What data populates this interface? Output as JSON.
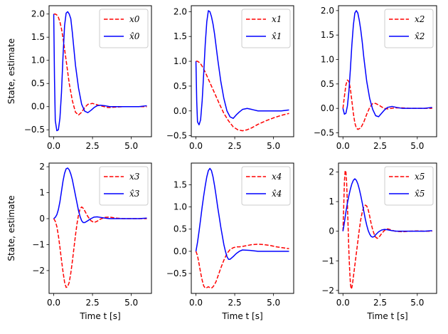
{
  "chart_data": [
    {
      "type": "line",
      "xlabel": "",
      "ylabel": "State, estimate",
      "xlim": [
        -0.3,
        6.3
      ],
      "ylim": [
        -0.65,
        2.18
      ],
      "xticks": [
        0.0,
        2.5,
        5.0
      ],
      "yticks": [
        -0.5,
        0.0,
        0.5,
        1.0,
        1.5,
        2.0
      ],
      "xtick_labels": [
        "0.0",
        "2.5",
        "5.0"
      ],
      "ytick_labels": [
        "−0.5",
        "0.0",
        "0.5",
        "1.0",
        "1.5",
        "2.0"
      ],
      "legend_position": "top-right",
      "series": [
        {
          "name": "x0",
          "name_sub": "0",
          "hat": false,
          "color": "#ff0000",
          "dash": true,
          "x": [
            0,
            0.1,
            0.2,
            0.3,
            0.4,
            0.5,
            0.6,
            0.8,
            1.0,
            1.2,
            1.4,
            1.6,
            1.8,
            2.0,
            2.2,
            2.5,
            2.8,
            3.0,
            3.5,
            4.0,
            4.5,
            5.0,
            5.5,
            6.0
          ],
          "y": [
            2.0,
            2.0,
            1.98,
            1.93,
            1.83,
            1.68,
            1.48,
            1.0,
            0.5,
            0.13,
            -0.12,
            -0.18,
            -0.12,
            -0.02,
            0.05,
            0.07,
            0.04,
            0.02,
            -0.02,
            -0.01,
            0.0,
            0.0,
            0.0,
            0.0
          ]
        },
        {
          "name": "x̂0",
          "name_sub": "0",
          "hat": true,
          "color": "#0000ff",
          "dash": false,
          "x": [
            0,
            0.05,
            0.1,
            0.2,
            0.3,
            0.4,
            0.5,
            0.6,
            0.7,
            0.8,
            0.9,
            1.0,
            1.1,
            1.2,
            1.3,
            1.4,
            1.6,
            1.8,
            2.0,
            2.2,
            2.4,
            2.6,
            2.8,
            3.0,
            3.3,
            3.6,
            4.0,
            4.5,
            5.0,
            5.5,
            6.0
          ],
          "y": [
            2.0,
            0.6,
            -0.3,
            -0.52,
            -0.5,
            -0.25,
            0.3,
            1.1,
            1.75,
            2.02,
            2.05,
            2.0,
            1.9,
            1.6,
            1.25,
            0.9,
            0.4,
            0.05,
            -0.1,
            -0.13,
            -0.08,
            -0.02,
            0.02,
            0.03,
            0.02,
            0.0,
            0.0,
            0.0,
            0.0,
            0.0,
            0.02
          ]
        }
      ]
    },
    {
      "type": "line",
      "xlabel": "",
      "ylabel": "",
      "xlim": [
        -0.3,
        6.3
      ],
      "ylim": [
        -0.52,
        2.12
      ],
      "xticks": [
        0.0,
        2.5,
        5.0
      ],
      "yticks": [
        -0.5,
        0.0,
        0.5,
        1.0,
        1.5,
        2.0
      ],
      "xtick_labels": [
        "0.0",
        "2.5",
        "5.0"
      ],
      "ytick_labels": [
        "−0.5",
        "0.0",
        "0.5",
        "1.0",
        "1.5",
        "2.0"
      ],
      "legend_position": "top-right",
      "series": [
        {
          "name": "x1",
          "name_sub": "1",
          "hat": false,
          "color": "#ff0000",
          "dash": true,
          "x": [
            0,
            0.1,
            0.2,
            0.3,
            0.4,
            0.6,
            0.8,
            1.0,
            1.2,
            1.5,
            1.8,
            2.1,
            2.4,
            2.7,
            3.0,
            3.3,
            3.6,
            4.0,
            4.5,
            5.0,
            5.5,
            6.0
          ],
          "y": [
            1.0,
            1.0,
            0.98,
            0.95,
            0.9,
            0.78,
            0.64,
            0.5,
            0.36,
            0.15,
            -0.05,
            -0.2,
            -0.32,
            -0.38,
            -0.4,
            -0.38,
            -0.34,
            -0.27,
            -0.2,
            -0.14,
            -0.09,
            -0.05
          ]
        },
        {
          "name": "x̂1",
          "name_sub": "1",
          "hat": true,
          "color": "#0000ff",
          "dash": false,
          "x": [
            0,
            0.05,
            0.1,
            0.2,
            0.3,
            0.4,
            0.5,
            0.6,
            0.7,
            0.8,
            0.9,
            1.0,
            1.1,
            1.2,
            1.3,
            1.4,
            1.6,
            1.8,
            2.0,
            2.2,
            2.4,
            2.6,
            2.8,
            3.0,
            3.3,
            3.6,
            4.0,
            4.5,
            5.0,
            5.5,
            6.0
          ],
          "y": [
            1.0,
            0.2,
            -0.22,
            -0.28,
            -0.18,
            0.2,
            0.75,
            1.35,
            1.8,
            2.02,
            2.0,
            1.9,
            1.75,
            1.55,
            1.3,
            1.05,
            0.6,
            0.25,
            0.0,
            -0.12,
            -0.15,
            -0.08,
            -0.02,
            0.03,
            0.05,
            0.03,
            0.0,
            0.0,
            0.0,
            0.0,
            0.02
          ]
        }
      ]
    },
    {
      "type": "line",
      "xlabel": "",
      "ylabel": "",
      "xlim": [
        -0.3,
        6.3
      ],
      "ylim": [
        -0.58,
        2.1
      ],
      "xticks": [
        0.0,
        2.5,
        5.0
      ],
      "yticks": [
        -0.5,
        0.0,
        0.5,
        1.0,
        1.5,
        2.0
      ],
      "xtick_labels": [
        "0.0",
        "2.5",
        "5.0"
      ],
      "ytick_labels": [
        "−0.5",
        "0.0",
        "0.5",
        "1.0",
        "1.5",
        "2.0"
      ],
      "legend_position": "top-right",
      "series": [
        {
          "name": "x2",
          "name_sub": "2",
          "hat": false,
          "color": "#ff0000",
          "dash": true,
          "x": [
            0,
            0.1,
            0.2,
            0.3,
            0.4,
            0.5,
            0.6,
            0.7,
            0.8,
            0.9,
            1.0,
            1.2,
            1.4,
            1.6,
            1.8,
            2.0,
            2.2,
            2.4,
            2.6,
            2.8,
            3.0,
            3.5,
            4.0,
            4.5,
            5.0,
            5.5,
            6.0
          ],
          "y": [
            0.0,
            0.25,
            0.48,
            0.58,
            0.55,
            0.4,
            0.15,
            -0.1,
            -0.3,
            -0.4,
            -0.43,
            -0.4,
            -0.28,
            -0.12,
            0.02,
            0.1,
            0.1,
            0.07,
            0.03,
            0.0,
            -0.01,
            0.01,
            0.01,
            0.0,
            0.0,
            0.0,
            0.0
          ]
        },
        {
          "name": "x̂2",
          "name_sub": "2",
          "hat": true,
          "color": "#0000ff",
          "dash": false,
          "x": [
            0,
            0.1,
            0.2,
            0.3,
            0.4,
            0.5,
            0.6,
            0.7,
            0.8,
            0.9,
            1.0,
            1.1,
            1.2,
            1.3,
            1.4,
            1.5,
            1.6,
            1.8,
            2.0,
            2.2,
            2.4,
            2.6,
            2.8,
            3.0,
            3.3,
            3.6,
            4.0,
            4.5,
            5.0,
            5.5,
            6.0
          ],
          "y": [
            0.0,
            -0.12,
            -0.1,
            0.05,
            0.35,
            0.8,
            1.3,
            1.7,
            1.95,
            2.0,
            1.95,
            1.8,
            1.6,
            1.35,
            1.05,
            0.8,
            0.55,
            0.2,
            -0.02,
            -0.15,
            -0.17,
            -0.1,
            -0.03,
            0.02,
            0.04,
            0.02,
            0.0,
            0.0,
            0.0,
            0.0,
            0.02
          ]
        }
      ]
    },
    {
      "type": "line",
      "xlabel": "Time t [s]",
      "ylabel": "State, estimate",
      "xlim": [
        -0.3,
        6.3
      ],
      "ylim": [
        -2.88,
        2.14
      ],
      "xticks": [
        0.0,
        2.5,
        5.0
      ],
      "yticks": [
        -2,
        -1,
        0,
        1,
        2
      ],
      "xtick_labels": [
        "0.0",
        "2.5",
        "5.0"
      ],
      "ytick_labels": [
        "−2",
        "−1",
        "0",
        "1",
        "2"
      ],
      "legend_position": "top-right",
      "series": [
        {
          "name": "x3",
          "name_sub": "3",
          "hat": false,
          "color": "#ff0000",
          "dash": true,
          "x": [
            0,
            0.1,
            0.2,
            0.3,
            0.4,
            0.5,
            0.6,
            0.7,
            0.8,
            0.9,
            1.0,
            1.1,
            1.2,
            1.3,
            1.4,
            1.5,
            1.6,
            1.7,
            1.8,
            1.9,
            2.0,
            2.2,
            2.4,
            2.6,
            2.8,
            3.0,
            3.3,
            3.6,
            4.0,
            4.5,
            5.0,
            5.5,
            6.0
          ],
          "y": [
            0.0,
            -0.1,
            -0.3,
            -0.65,
            -1.1,
            -1.6,
            -2.05,
            -2.45,
            -2.65,
            -2.62,
            -2.45,
            -2.1,
            -1.65,
            -1.15,
            -0.65,
            -0.2,
            0.15,
            0.38,
            0.45,
            0.4,
            0.3,
            0.08,
            -0.08,
            -0.15,
            -0.1,
            -0.02,
            0.05,
            0.06,
            0.02,
            0.0,
            0.0,
            0.0,
            0.0
          ]
        },
        {
          "name": "x̂3",
          "name_sub": "3",
          "hat": true,
          "color": "#0000ff",
          "dash": false,
          "x": [
            0,
            0.1,
            0.2,
            0.3,
            0.4,
            0.5,
            0.6,
            0.7,
            0.8,
            0.9,
            1.0,
            1.1,
            1.2,
            1.3,
            1.4,
            1.5,
            1.6,
            1.7,
            1.8,
            1.9,
            2.0,
            2.2,
            2.4,
            2.6,
            2.8,
            3.0,
            3.3,
            3.6,
            4.0,
            4.5,
            5.0,
            5.5,
            6.0
          ],
          "y": [
            0.0,
            0.05,
            0.15,
            0.35,
            0.65,
            1.05,
            1.45,
            1.75,
            1.92,
            1.95,
            1.88,
            1.72,
            1.5,
            1.2,
            0.9,
            0.6,
            0.3,
            0.08,
            -0.08,
            -0.15,
            -0.15,
            -0.08,
            0.0,
            0.06,
            0.07,
            0.05,
            0.02,
            0.0,
            0.0,
            0.0,
            0.0,
            0.0,
            0.02
          ]
        }
      ]
    },
    {
      "type": "line",
      "xlabel": "Time t [s]",
      "ylabel": "",
      "xlim": [
        -0.3,
        6.3
      ],
      "ylim": [
        -0.95,
        1.99
      ],
      "xticks": [
        0.0,
        2.5,
        5.0
      ],
      "yticks": [
        -0.5,
        0.0,
        0.5,
        1.0,
        1.5
      ],
      "xtick_labels": [
        "0.0",
        "2.5",
        "5.0"
      ],
      "ytick_labels": [
        "−0.5",
        "0.0",
        "0.5",
        "1.0",
        "1.5"
      ],
      "legend_position": "top-right",
      "series": [
        {
          "name": "x4",
          "name_sub": "4",
          "hat": false,
          "color": "#ff0000",
          "dash": true,
          "x": [
            0,
            0.1,
            0.2,
            0.3,
            0.4,
            0.5,
            0.6,
            0.7,
            0.8,
            0.9,
            1.0,
            1.1,
            1.2,
            1.3,
            1.4,
            1.5,
            1.6,
            1.8,
            2.0,
            2.2,
            2.4,
            2.6,
            2.8,
            3.0,
            3.3,
            3.6,
            4.0,
            4.4,
            4.8,
            5.2,
            5.6,
            6.0
          ],
          "y": [
            0.0,
            -0.1,
            -0.28,
            -0.48,
            -0.65,
            -0.78,
            -0.83,
            -0.82,
            -0.8,
            -0.82,
            -0.83,
            -0.8,
            -0.75,
            -0.68,
            -0.58,
            -0.48,
            -0.38,
            -0.2,
            -0.05,
            0.04,
            0.08,
            0.1,
            0.1,
            0.11,
            0.13,
            0.15,
            0.16,
            0.15,
            0.13,
            0.1,
            0.08,
            0.06
          ]
        },
        {
          "name": "x̂4",
          "name_sub": "4",
          "hat": true,
          "color": "#0000ff",
          "dash": false,
          "x": [
            0,
            0.1,
            0.2,
            0.3,
            0.4,
            0.5,
            0.6,
            0.7,
            0.8,
            0.9,
            1.0,
            1.1,
            1.2,
            1.3,
            1.4,
            1.5,
            1.6,
            1.7,
            1.8,
            1.9,
            2.0,
            2.1,
            2.2,
            2.4,
            2.6,
            2.8,
            3.0,
            3.5,
            4.0,
            4.5,
            5.0,
            5.5,
            6.0
          ],
          "y": [
            0.0,
            0.2,
            0.45,
            0.72,
            1.0,
            1.25,
            1.48,
            1.68,
            1.82,
            1.87,
            1.82,
            1.68,
            1.48,
            1.25,
            1.0,
            0.78,
            0.55,
            0.35,
            0.15,
            0.0,
            -0.12,
            -0.18,
            -0.18,
            -0.12,
            -0.05,
            0.0,
            0.03,
            0.02,
            0.0,
            0.0,
            0.0,
            0.0,
            0.0
          ]
        }
      ]
    },
    {
      "type": "line",
      "xlabel": "Time t [s]",
      "ylabel": "",
      "xlim": [
        -0.3,
        6.3
      ],
      "ylim": [
        -2.1,
        2.3
      ],
      "xticks": [
        0.0,
        2.5,
        5.0
      ],
      "yticks": [
        -2,
        -1,
        0,
        1,
        2
      ],
      "xtick_labels": [
        "0.0",
        "2.5",
        "5.0"
      ],
      "ytick_labels": [
        "−2",
        "−1",
        "0",
        "1",
        "2"
      ],
      "legend_position": "top-right",
      "series": [
        {
          "name": "x5",
          "name_sub": "5",
          "hat": false,
          "color": "#ff0000",
          "dash": true,
          "x": [
            0,
            0.05,
            0.1,
            0.15,
            0.2,
            0.25,
            0.3,
            0.35,
            0.4,
            0.45,
            0.5,
            0.55,
            0.6,
            0.65,
            0.7,
            0.75,
            0.8,
            0.9,
            1.0,
            1.1,
            1.2,
            1.3,
            1.4,
            1.5,
            1.6,
            1.7,
            1.8,
            1.9,
            2.0,
            2.1,
            2.2,
            2.3,
            2.4,
            2.5,
            2.6,
            2.8,
            3.0,
            3.2,
            3.5,
            4.0,
            4.5,
            5.0,
            5.5,
            6.0
          ],
          "y": [
            0.0,
            0.8,
            1.7,
            2.05,
            2.0,
            1.6,
            0.9,
            0.1,
            -0.7,
            -1.3,
            -1.75,
            -1.95,
            -1.9,
            -1.75,
            -1.55,
            -1.35,
            -1.15,
            -0.75,
            -0.35,
            0.05,
            0.4,
            0.65,
            0.82,
            0.88,
            0.85,
            0.72,
            0.5,
            0.25,
            0.05,
            -0.1,
            -0.2,
            -0.24,
            -0.22,
            -0.15,
            -0.08,
            0.03,
            0.08,
            0.05,
            0.0,
            -0.02,
            0.0,
            0.01,
            0.0,
            0.0
          ]
        },
        {
          "name": "x̂5",
          "name_sub": "5",
          "hat": true,
          "color": "#0000ff",
          "dash": false,
          "x": [
            0,
            0.1,
            0.2,
            0.3,
            0.4,
            0.5,
            0.6,
            0.7,
            0.8,
            0.9,
            1.0,
            1.1,
            1.2,
            1.3,
            1.4,
            1.5,
            1.6,
            1.7,
            1.8,
            1.9,
            2.0,
            2.1,
            2.2,
            2.4,
            2.6,
            2.8,
            3.0,
            3.3,
            3.6,
            4.0,
            4.5,
            5.0,
            5.5,
            6.0
          ],
          "y": [
            0.0,
            0.3,
            0.65,
            0.95,
            1.2,
            1.42,
            1.6,
            1.72,
            1.77,
            1.72,
            1.6,
            1.42,
            1.2,
            0.95,
            0.68,
            0.42,
            0.2,
            0.02,
            -0.1,
            -0.18,
            -0.2,
            -0.18,
            -0.12,
            -0.02,
            0.04,
            0.06,
            0.05,
            0.02,
            0.0,
            0.0,
            0.0,
            0.0,
            0.0,
            0.02
          ]
        }
      ]
    }
  ]
}
